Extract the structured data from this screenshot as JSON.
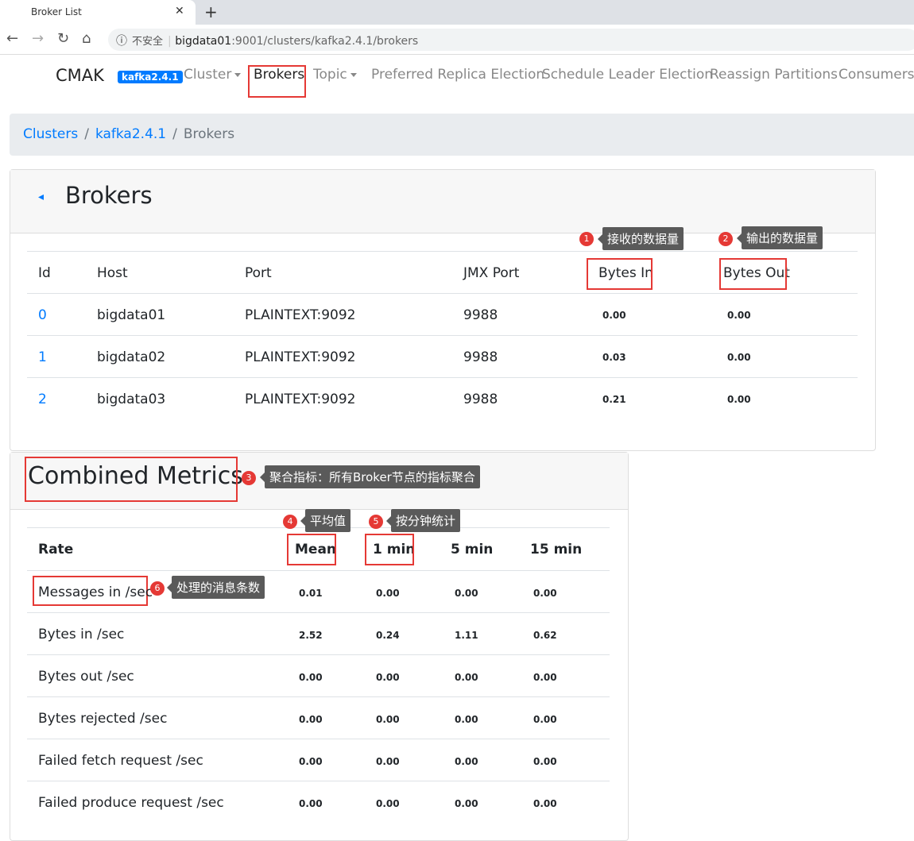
{
  "browser": {
    "tab_title": "Broker List",
    "security_label": "不安全",
    "url_host": "bigdata01",
    "url_path": ":9001/clusters/kafka2.4.1/brokers"
  },
  "nav": {
    "brand": "CMAK",
    "cluster_badge": "kafka2.4.1",
    "items": [
      "Cluster",
      "Brokers",
      "Topic",
      "Preferred Replica Election",
      "Schedule Leader Election",
      "Reassign Partitions",
      "Consumers"
    ]
  },
  "breadcrumb": [
    "Clusters",
    "kafka2.4.1",
    "Brokers"
  ],
  "brokers": {
    "title": "Brokers",
    "columns": [
      "Id",
      "Host",
      "Port",
      "JMX Port",
      "Bytes In",
      "Bytes Out"
    ],
    "rows": [
      {
        "id": "0",
        "host": "bigdata01",
        "port": "PLAINTEXT:9092",
        "jmx": "9988",
        "in": "0.00",
        "out": "0.00"
      },
      {
        "id": "1",
        "host": "bigdata02",
        "port": "PLAINTEXT:9092",
        "jmx": "9988",
        "in": "0.03",
        "out": "0.00"
      },
      {
        "id": "2",
        "host": "bigdata03",
        "port": "PLAINTEXT:9092",
        "jmx": "9988",
        "in": "0.21",
        "out": "0.00"
      }
    ]
  },
  "metrics": {
    "title": "Combined Metrics",
    "columns": [
      "Rate",
      "Mean",
      "1 min",
      "5 min",
      "15 min"
    ],
    "rows": [
      {
        "rate": "Messages in /sec",
        "v": [
          "0.01",
          "0.00",
          "0.00",
          "0.00"
        ]
      },
      {
        "rate": "Bytes in /sec",
        "v": [
          "2.52",
          "0.24",
          "1.11",
          "0.62"
        ]
      },
      {
        "rate": "Bytes out /sec",
        "v": [
          "0.00",
          "0.00",
          "0.00",
          "0.00"
        ]
      },
      {
        "rate": "Bytes rejected /sec",
        "v": [
          "0.00",
          "0.00",
          "0.00",
          "0.00"
        ]
      },
      {
        "rate": "Failed fetch request /sec",
        "v": [
          "0.00",
          "0.00",
          "0.00",
          "0.00"
        ]
      },
      {
        "rate": "Failed produce request /sec",
        "v": [
          "0.00",
          "0.00",
          "0.00",
          "0.00"
        ]
      }
    ]
  },
  "annotations": [
    {
      "n": "1",
      "text": "接收的数据量"
    },
    {
      "n": "2",
      "text": "输出的数据量"
    },
    {
      "n": "3",
      "text": "聚合指标：所有Broker节点的指标聚合"
    },
    {
      "n": "4",
      "text": "平均值"
    },
    {
      "n": "5",
      "text": "按分钟统计"
    },
    {
      "n": "6",
      "text": "处理的消息条数"
    }
  ],
  "colors": {
    "link": "#007bff",
    "highlight": "#e53935",
    "annotation_bg": "#5a5a5a"
  }
}
